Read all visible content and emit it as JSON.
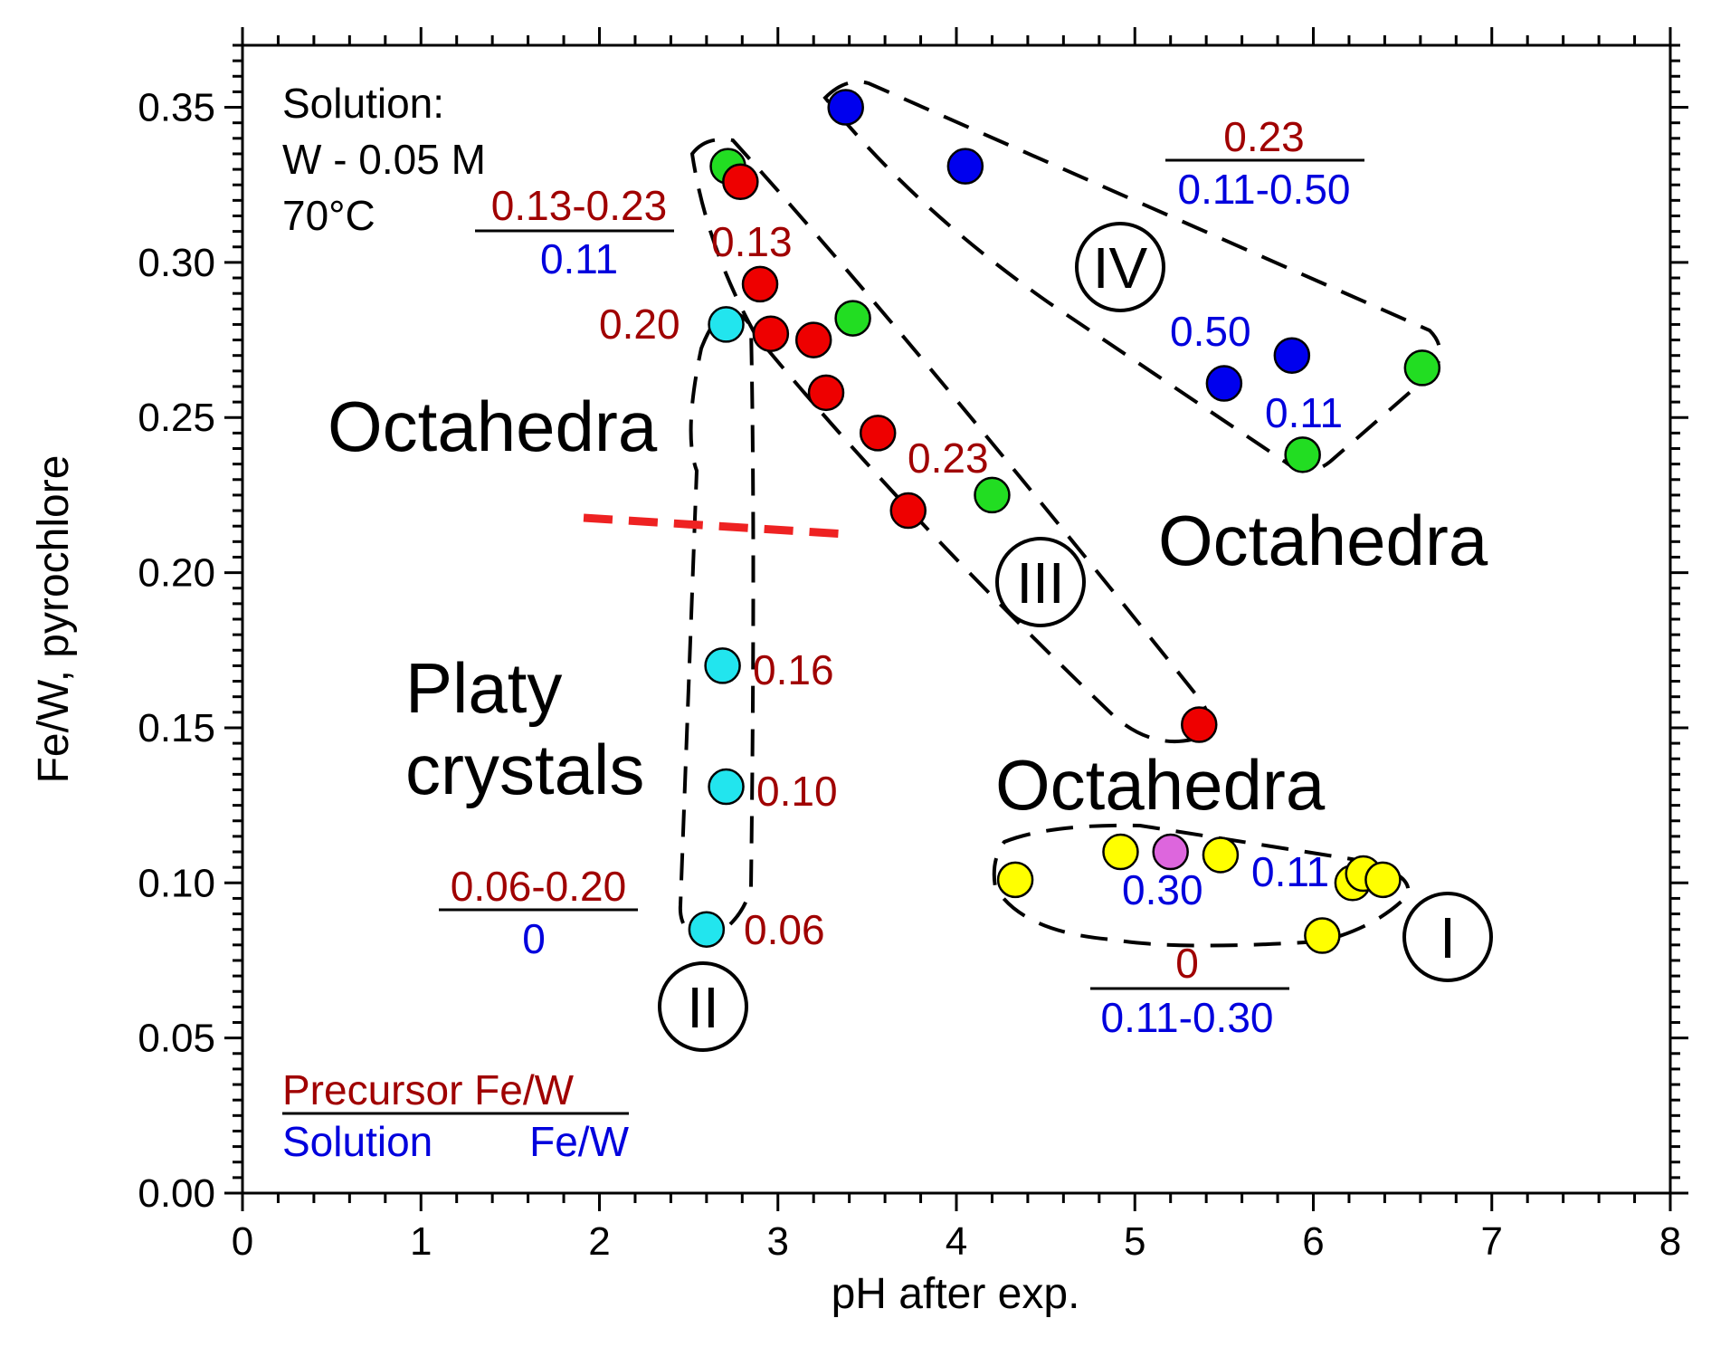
{
  "chart_data": {
    "type": "scatter",
    "xlabel": "pH after exp.",
    "ylabel": "Fe/W, pyrochlore",
    "xlim": [
      0,
      8
    ],
    "ylim": [
      0,
      0.37
    ],
    "xticks": [
      "0",
      "1",
      "2",
      "3",
      "4",
      "5",
      "6",
      "7",
      "8"
    ],
    "yticks": [
      "0.00",
      "0.05",
      "0.10",
      "0.15",
      "0.20",
      "0.25",
      "0.30",
      "0.35"
    ],
    "grid": false,
    "colors": {
      "precursor": "#a00000",
      "solution": "#0000dd",
      "red": "#ee0000",
      "green": "#22dd22",
      "blue": "#0000ee",
      "cyan": "#22e5ee",
      "yellow": "#ffff00",
      "violet": "#dd66dd",
      "boundary": "#ee2222"
    },
    "series": [
      {
        "color": "blue",
        "points": [
          [
            3.38,
            0.35
          ],
          [
            4.05,
            0.331
          ],
          [
            5.5,
            0.261
          ],
          [
            5.88,
            0.27
          ]
        ]
      },
      {
        "color": "green",
        "points": [
          [
            2.72,
            0.331
          ],
          [
            3.42,
            0.282
          ],
          [
            4.2,
            0.225
          ],
          [
            5.94,
            0.238
          ],
          [
            6.61,
            0.266
          ]
        ]
      },
      {
        "color": "red",
        "points": [
          [
            2.79,
            0.326
          ],
          [
            2.9,
            0.293
          ],
          [
            2.96,
            0.277
          ],
          [
            3.2,
            0.275
          ],
          [
            3.27,
            0.258
          ],
          [
            3.56,
            0.245
          ],
          [
            3.73,
            0.22
          ],
          [
            5.36,
            0.151
          ]
        ]
      },
      {
        "color": "cyan",
        "points": [
          [
            2.71,
            0.28
          ],
          [
            2.69,
            0.17
          ],
          [
            2.71,
            0.131
          ],
          [
            2.6,
            0.085
          ]
        ]
      },
      {
        "color": "yellow",
        "points": [
          [
            4.33,
            0.101
          ],
          [
            4.92,
            0.11
          ],
          [
            5.48,
            0.109
          ],
          [
            6.05,
            0.083
          ],
          [
            6.22,
            0.1
          ],
          [
            6.28,
            0.103
          ],
          [
            6.39,
            0.101
          ]
        ]
      },
      {
        "color": "violet",
        "points": [
          [
            5.2,
            0.11
          ]
        ]
      }
    ],
    "annotations": {
      "solution_lines": [
        "Solution:",
        "W - 0.05 M",
        "70°C"
      ],
      "fractions": [
        {
          "top": "0.13-0.23",
          "bottom": "0.11"
        },
        {
          "top": "0.23",
          "bottom": "0.11-0.50"
        },
        {
          "top": "0.06-0.20",
          "bottom": "0"
        },
        {
          "top": "0",
          "bottom": "0.11-0.30"
        }
      ],
      "precursor_labels": [
        "0.13",
        "0.20",
        "0.23",
        "0.16",
        "0.10",
        "0.06"
      ],
      "solution_labels": [
        "0.50",
        "0.11",
        "0.30",
        "0.11"
      ],
      "regions": [
        "Octahedra",
        "Octahedra",
        "Octahedra",
        "Platy",
        "crystals"
      ],
      "romans": [
        "IV",
        "III",
        "II",
        "I"
      ],
      "legend": {
        "precursor": "Precursor Fe/W",
        "solution": "Solution",
        "solution_fe": "Fe/W"
      }
    }
  }
}
